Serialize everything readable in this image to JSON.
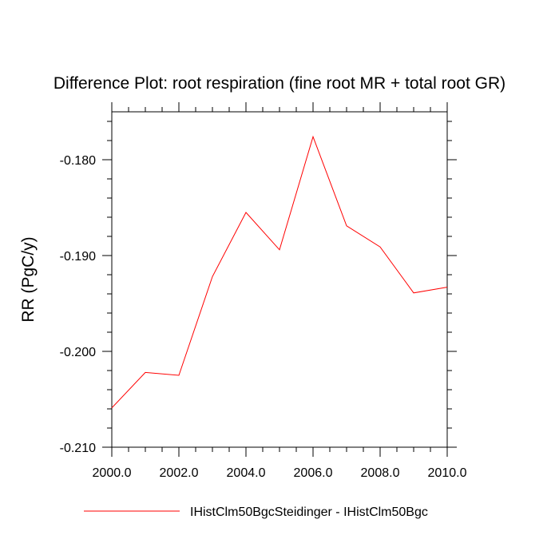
{
  "chart_data": {
    "type": "line",
    "title": "Difference Plot: root respiration (fine root MR + total root GR)",
    "xlabel": "",
    "ylabel": "RR  (PgC/y)",
    "xlim": [
      2000,
      2010
    ],
    "ylim": [
      -0.21,
      -0.175
    ],
    "x_ticks": [
      2000,
      2002,
      2004,
      2006,
      2008,
      2010
    ],
    "x_tick_labels": [
      "2000.0",
      "2002.0",
      "2004.0",
      "2006.0",
      "2008.0",
      "2010.0"
    ],
    "y_ticks": [
      -0.21,
      -0.2,
      -0.19,
      -0.18
    ],
    "y_tick_labels": [
      "-0.210",
      "-0.200",
      "-0.190",
      "-0.180"
    ],
    "grid": false,
    "legend_position": "bottom",
    "x": [
      2000,
      2001,
      2002,
      2003,
      2004,
      2005,
      2006,
      2007,
      2008,
      2009,
      2010
    ],
    "series": [
      {
        "name": "IHistClm50BgcSteidinger - IHistClm50Bgc",
        "color": "#ff0000",
        "values": [
          -0.2059,
          -0.2022,
          -0.2025,
          -0.1922,
          -0.1855,
          -0.1894,
          -0.1776,
          -0.1869,
          -0.1891,
          -0.1939,
          -0.1933
        ]
      }
    ]
  }
}
